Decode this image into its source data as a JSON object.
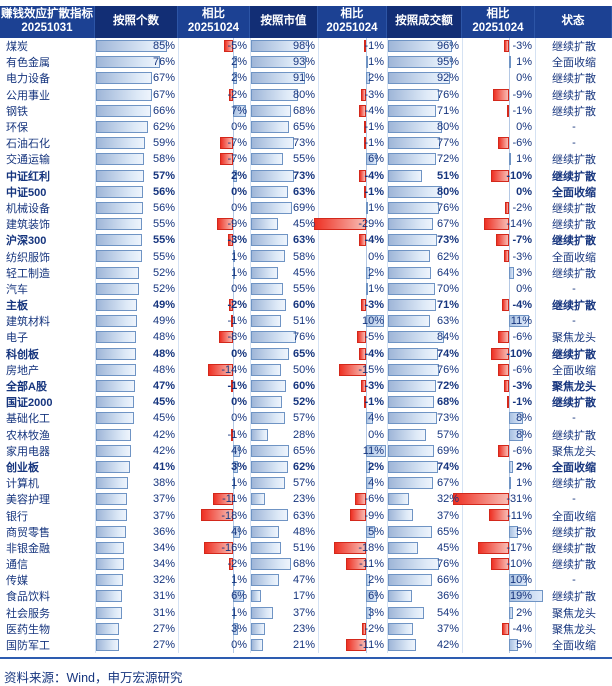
{
  "header": {
    "title_line1": "赚钱效应扩散指标",
    "title_line2": "20251031",
    "col_count": "按照个数",
    "col_diff_line1": "相比",
    "col_diff_line2": "20251024",
    "col_mcap": "按照市值",
    "col_turnover": "按照成交额",
    "col_status": "状态"
  },
  "footer": {
    "source": "资料来源：Wind，申万宏源研究"
  },
  "colors": {
    "header_bg": "#1c4193",
    "header_bg_dark": "#122e75",
    "header_text": "#ffffff",
    "body_text": "#16357e",
    "bar_blue_start": "#9fb6d8",
    "bar_blue_end": "#eef4fc",
    "bar_blue_border": "#6f94c4",
    "bar_red_start": "#ee3124",
    "bar_red_end": "#f8bcb4",
    "bar_red_border": "#d3281b",
    "axis_line": "#b4c8e4",
    "bottom_rule": "#2d5cb0"
  },
  "chart_data": {
    "type": "table",
    "title": "赚钱效应扩散指标 20251031",
    "columns": [
      "行业/指数",
      "按照个数",
      "相比20251024",
      "按照市值",
      "相比20251024",
      "按照成交额",
      "相比20251024",
      "状态"
    ],
    "unit": "%",
    "row_fields": [
      "name",
      "count",
      "count_diff",
      "mcap",
      "mcap_diff",
      "amount",
      "amount_diff",
      "status",
      "bold"
    ],
    "rows": [
      [
        "煤炭",
        85,
        -5,
        98,
        -1,
        96,
        -3,
        "继续扩散",
        0
      ],
      [
        "有色金属",
        76,
        2,
        93,
        1,
        95,
        1,
        "全面收缩",
        0
      ],
      [
        "电力设备",
        67,
        2,
        91,
        2,
        92,
        0,
        "继续扩散",
        0
      ],
      [
        "公用事业",
        67,
        -2,
        80,
        -3,
        76,
        -9,
        "继续扩散",
        0
      ],
      [
        "钢铁",
        66,
        7,
        68,
        -4,
        71,
        -1,
        "继续扩散",
        0
      ],
      [
        "环保",
        62,
        0,
        65,
        -1,
        80,
        0,
        "-",
        0
      ],
      [
        "石油石化",
        59,
        -7,
        73,
        -1,
        77,
        -6,
        "-",
        0
      ],
      [
        "交通运输",
        58,
        -7,
        55,
        6,
        72,
        1,
        "继续扩散",
        0
      ],
      [
        "中证红利",
        57,
        2,
        73,
        -4,
        51,
        -10,
        "继续扩散",
        1
      ],
      [
        "中证500",
        56,
        0,
        63,
        -1,
        80,
        0,
        "全面收缩",
        1
      ],
      [
        "机械设备",
        56,
        0,
        69,
        1,
        76,
        -2,
        "继续扩散",
        0
      ],
      [
        "建筑装饰",
        55,
        -9,
        45,
        -29,
        67,
        -14,
        "继续扩散",
        0
      ],
      [
        "沪深300",
        55,
        -3,
        63,
        -4,
        73,
        -7,
        "继续扩散",
        1
      ],
      [
        "纺织服饰",
        55,
        1,
        58,
        0,
        62,
        -3,
        "全面收缩",
        0
      ],
      [
        "轻工制造",
        52,
        1,
        45,
        2,
        64,
        3,
        "继续扩散",
        0
      ],
      [
        "汽车",
        52,
        0,
        55,
        1,
        70,
        0,
        "-",
        0
      ],
      [
        "主板",
        49,
        -2,
        60,
        -3,
        71,
        -4,
        "继续扩散",
        1
      ],
      [
        "建筑材料",
        49,
        -1,
        51,
        10,
        63,
        11,
        "-",
        0
      ],
      [
        "电子",
        48,
        -8,
        76,
        -5,
        84,
        -6,
        "聚焦龙头",
        0
      ],
      [
        "科创板",
        48,
        0,
        65,
        -4,
        74,
        -10,
        "继续扩散",
        1
      ],
      [
        "房地产",
        48,
        -14,
        50,
        -15,
        76,
        -6,
        "全面收缩",
        0
      ],
      [
        "全部A股",
        47,
        -1,
        60,
        -3,
        72,
        -3,
        "聚焦龙头",
        1
      ],
      [
        "国证2000",
        45,
        0,
        52,
        -1,
        68,
        -1,
        "继续扩散",
        1
      ],
      [
        "基础化工",
        45,
        0,
        57,
        4,
        73,
        8,
        "-",
        0
      ],
      [
        "农林牧渔",
        42,
        -1,
        28,
        0,
        57,
        8,
        "继续扩散",
        0
      ],
      [
        "家用电器",
        42,
        4,
        65,
        11,
        69,
        -6,
        "聚焦龙头",
        0
      ],
      [
        "创业板",
        41,
        3,
        62,
        2,
        74,
        2,
        "全面收缩",
        1
      ],
      [
        "计算机",
        38,
        1,
        57,
        4,
        67,
        1,
        "继续扩散",
        0
      ],
      [
        "美容护理",
        37,
        -11,
        23,
        -6,
        32,
        -31,
        "-",
        0
      ],
      [
        "银行",
        37,
        -18,
        63,
        -9,
        37,
        -11,
        "全面收缩",
        0
      ],
      [
        "商贸零售",
        36,
        4,
        48,
        5,
        65,
        5,
        "继续扩散",
        0
      ],
      [
        "非银金融",
        34,
        -16,
        51,
        -18,
        45,
        -17,
        "继续扩散",
        0
      ],
      [
        "通信",
        34,
        -2,
        68,
        -11,
        76,
        -10,
        "继续扩散",
        0
      ],
      [
        "传媒",
        32,
        1,
        47,
        2,
        66,
        10,
        "-",
        0
      ],
      [
        "食品饮料",
        31,
        6,
        17,
        6,
        36,
        19,
        "继续扩散",
        0
      ],
      [
        "社会服务",
        31,
        1,
        37,
        3,
        54,
        2,
        "聚焦龙头",
        0
      ],
      [
        "医药生物",
        27,
        3,
        23,
        -2,
        37,
        -4,
        "聚焦龙头",
        0
      ],
      [
        "国防军工",
        27,
        0,
        21,
        -11,
        42,
        5,
        "全面收缩",
        0
      ]
    ]
  }
}
